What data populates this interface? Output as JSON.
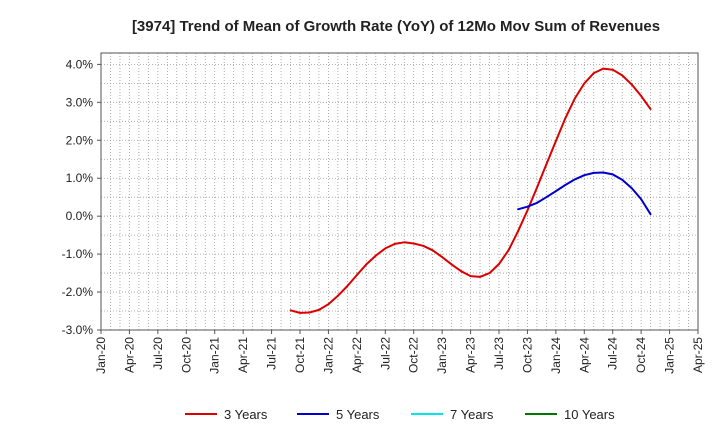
{
  "chart_data": {
    "type": "line",
    "title": "[3974]  Trend of Mean of Growth Rate (YoY) of 12Mo Mov Sum of Revenues",
    "xlabel": "",
    "ylabel": "",
    "x_ticks": [
      "Jan-20",
      "Apr-20",
      "Jul-20",
      "Oct-20",
      "Jan-21",
      "Apr-21",
      "Jul-21",
      "Oct-21",
      "Jan-22",
      "Apr-22",
      "Jul-22",
      "Oct-22",
      "Jan-23",
      "Apr-23",
      "Jul-23",
      "Oct-23",
      "Jan-24",
      "Apr-24",
      "Jul-24",
      "Oct-24",
      "Jan-25",
      "Apr-25"
    ],
    "y_ticks": [
      "-3.0%",
      "-2.0%",
      "-1.0%",
      "0.0%",
      "1.0%",
      "2.0%",
      "3.0%",
      "4.0%"
    ],
    "ylim": [
      -3.0,
      4.3
    ],
    "y_tick_values": [
      -3,
      -2,
      -1,
      0,
      1,
      2,
      3,
      4
    ],
    "grid": true,
    "legend_position": "bottom",
    "series": [
      {
        "name": "3 Years",
        "color": "#dd0000",
        "points": [
          [
            "Sep-21",
            -2.48
          ],
          [
            "Oct-21",
            -2.55
          ],
          [
            "Nov-21",
            -2.54
          ],
          [
            "Dec-21",
            -2.47
          ],
          [
            "Jan-22",
            -2.32
          ],
          [
            "Feb-22",
            -2.1
          ],
          [
            "Mar-22",
            -1.84
          ],
          [
            "Apr-22",
            -1.55
          ],
          [
            "May-22",
            -1.27
          ],
          [
            "Jun-22",
            -1.04
          ],
          [
            "Jul-22",
            -0.85
          ],
          [
            "Aug-22",
            -0.73
          ],
          [
            "Sep-22",
            -0.69
          ],
          [
            "Oct-22",
            -0.72
          ],
          [
            "Nov-22",
            -0.78
          ],
          [
            "Dec-22",
            -0.9
          ],
          [
            "Jan-23",
            -1.08
          ],
          [
            "Feb-23",
            -1.27
          ],
          [
            "Mar-23",
            -1.45
          ],
          [
            "Apr-23",
            -1.58
          ],
          [
            "May-23",
            -1.6
          ],
          [
            "Jun-23",
            -1.5
          ],
          [
            "Jul-23",
            -1.26
          ],
          [
            "Aug-23",
            -0.9
          ],
          [
            "Sep-23",
            -0.4
          ],
          [
            "Oct-23",
            0.15
          ],
          [
            "Nov-23",
            0.75
          ],
          [
            "Dec-23",
            1.37
          ],
          [
            "Jan-24",
            1.98
          ],
          [
            "Feb-24",
            2.58
          ],
          [
            "Mar-24",
            3.1
          ],
          [
            "Apr-24",
            3.5
          ],
          [
            "May-24",
            3.77
          ],
          [
            "Jun-24",
            3.89
          ],
          [
            "Jul-24",
            3.86
          ],
          [
            "Aug-24",
            3.71
          ],
          [
            "Sep-24",
            3.47
          ],
          [
            "Oct-24",
            3.17
          ],
          [
            "Nov-24",
            2.82
          ]
        ]
      },
      {
        "name": "5 Years",
        "color": "#0000cc",
        "points": [
          [
            "Sep-23",
            0.18
          ],
          [
            "Oct-23",
            0.25
          ],
          [
            "Nov-23",
            0.35
          ],
          [
            "Dec-23",
            0.5
          ],
          [
            "Jan-24",
            0.66
          ],
          [
            "Feb-24",
            0.82
          ],
          [
            "Mar-24",
            0.97
          ],
          [
            "Apr-24",
            1.08
          ],
          [
            "May-24",
            1.14
          ],
          [
            "Jun-24",
            1.15
          ],
          [
            "Jul-24",
            1.1
          ],
          [
            "Aug-24",
            0.96
          ],
          [
            "Sep-24",
            0.74
          ],
          [
            "Oct-24",
            0.45
          ],
          [
            "Nov-24",
            0.05
          ]
        ]
      },
      {
        "name": "7 Years",
        "color": "#00e5ee",
        "points": []
      },
      {
        "name": "10 Years",
        "color": "#007700",
        "points": []
      }
    ]
  }
}
